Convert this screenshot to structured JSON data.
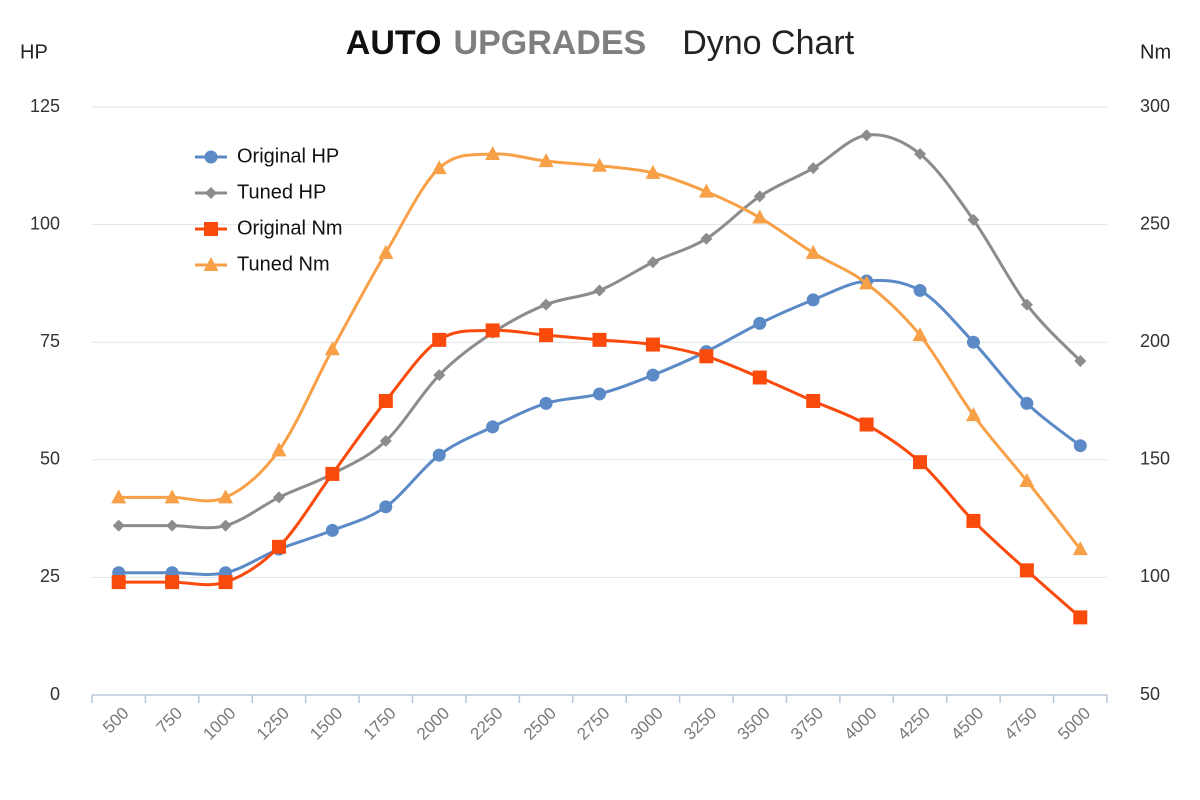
{
  "chart_data": {
    "type": "line",
    "brand": [
      "AUTO",
      "UPGRADES"
    ],
    "title": "Dyno Chart",
    "y_label": "HP",
    "y2_label": "Nm",
    "categories": [
      "500",
      "750",
      "1000",
      "1250",
      "1500",
      "1750",
      "2000",
      "2250",
      "2500",
      "2750",
      "3000",
      "3250",
      "3500",
      "3750",
      "4000",
      "4250",
      "4500",
      "4750",
      "5000"
    ],
    "ylim": [
      0,
      125
    ],
    "yticks": [
      0,
      25,
      50,
      75,
      100,
      125
    ],
    "y2lim": [
      50,
      300
    ],
    "y2ticks": [
      50,
      100,
      150,
      200,
      250,
      300
    ],
    "grid": true,
    "smooth": true,
    "legend": "upper left",
    "series": [
      {
        "name": "Original HP",
        "color": "#5b8ac6",
        "marker": "circle",
        "values": [
          26,
          26,
          26,
          31,
          35,
          40,
          51,
          57,
          62,
          64,
          68,
          73,
          79,
          84,
          88,
          86,
          75,
          62,
          53
        ]
      },
      {
        "name": "Tuned HP",
        "color": "#8c8c8c",
        "marker": "diamond",
        "values": [
          36,
          36,
          36,
          42,
          47,
          54,
          68,
          77,
          83,
          86,
          92,
          97,
          106,
          112,
          119,
          115,
          101,
          83,
          71
        ]
      },
      {
        "name": "Original Nm",
        "color": "#fa4a0c",
        "marker": "square",
        "axis": "y2",
        "values": [
          98,
          98,
          98,
          113,
          144,
          175,
          201,
          205,
          203,
          201,
          199,
          194,
          185,
          175,
          165,
          149,
          124,
          103,
          83
        ]
      },
      {
        "name": "Tuned Nm",
        "color": "#f7a048",
        "marker": "triangle",
        "axis": "y2",
        "values": [
          134,
          134,
          134,
          154,
          197,
          238,
          274,
          280,
          277,
          275,
          272,
          264,
          253,
          238,
          225,
          203,
          169,
          141,
          112
        ]
      }
    ]
  }
}
